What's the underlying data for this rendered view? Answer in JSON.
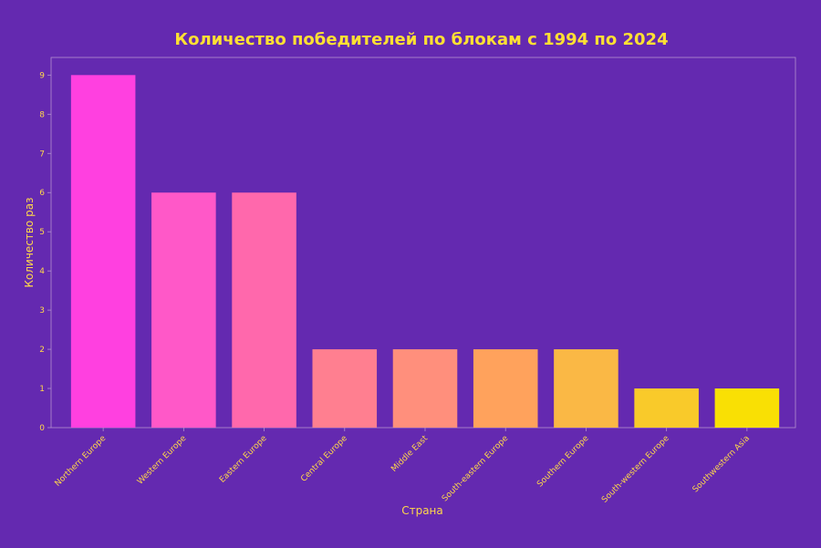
{
  "chart_data": {
    "type": "bar",
    "title": "Количество победителей по блокам с 1994 по 2024",
    "xlabel": "Страна",
    "ylabel": "Количество раз",
    "categories": [
      "Northern Europe",
      "Western Europe",
      "Eastern Europe",
      "Central Europe",
      "Middle East",
      "South-eastern Europe",
      "Southern Europe",
      "South-western Europe",
      "Southwestern Asia"
    ],
    "values": [
      9,
      6,
      6,
      2,
      2,
      2,
      2,
      1,
      1
    ],
    "yticks": [
      "0",
      "1",
      "2",
      "3",
      "4",
      "5",
      "6",
      "7",
      "8",
      "9"
    ],
    "ylim": [
      0,
      9.45
    ],
    "grid": false,
    "legend": "none",
    "bar_colors": [
      "#ff40e0",
      "#ff58c8",
      "#ff68ac",
      "#ff7f90",
      "#ff8f7c",
      "#ffa25c",
      "#fab845",
      "#f9ca2a",
      "#f9e004"
    ]
  },
  "colors": {
    "background": "#6429b0",
    "text": "#ffd84a",
    "title": "#ffe033",
    "frame": "#b48fd0"
  }
}
